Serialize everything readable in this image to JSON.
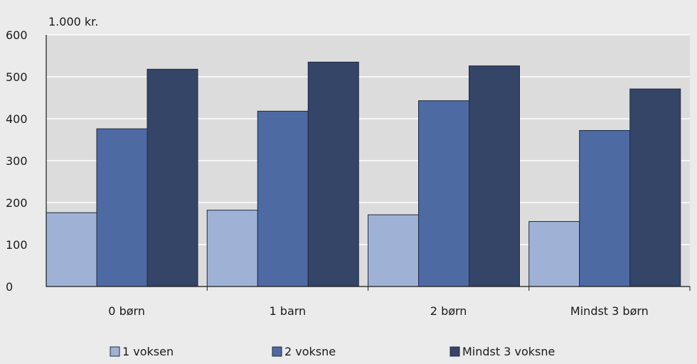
{
  "chart_data": {
    "type": "bar",
    "unit_label": "1.000 kr.",
    "categories": [
      "0 børn",
      "1 barn",
      "2 børn",
      "Mindst 3 børn"
    ],
    "series": [
      {
        "name": "1 voksen",
        "color": "#9fb2d6",
        "values": [
          176,
          182,
          171,
          155
        ]
      },
      {
        "name": "2 voksne",
        "color": "#4d6aa3",
        "values": [
          376,
          418,
          443,
          372
        ]
      },
      {
        "name": "Mindst 3 voksne",
        "color": "#344567",
        "values": [
          518,
          535,
          526,
          471
        ]
      }
    ],
    "ylim": [
      0,
      600
    ],
    "yticks": [
      0,
      100,
      200,
      300,
      400,
      500,
      600
    ],
    "grid": true,
    "plot_background": "#dcdcdc",
    "page_background": "#ebebeb",
    "legend_position": "bottom"
  }
}
